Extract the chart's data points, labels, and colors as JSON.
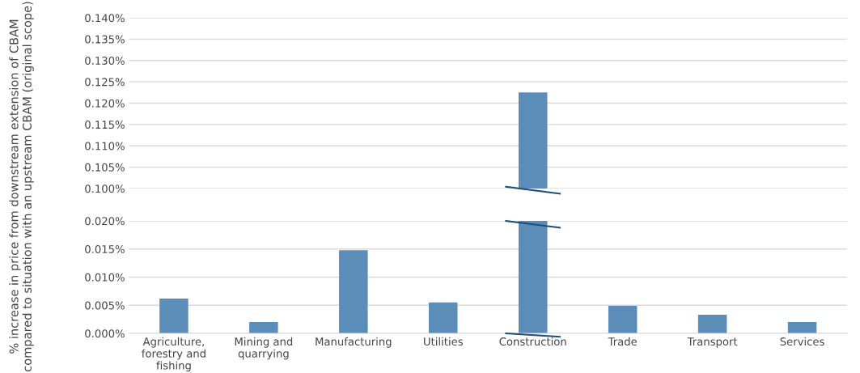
{
  "chart_data": [
    {
      "type": "bar",
      "ylabel": "% increase in price from downstream extension of CBAM compared to situation with an upstream CBAM (original scope)",
      "values": [
        null,
        null,
        null,
        null,
        0.1225,
        null,
        null,
        null
      ],
      "color": "#5b8db8",
      "ylim": [
        0.1,
        0.14
      ],
      "yticks": [
        {
          "value": 0.1,
          "label": "0.100%"
        },
        {
          "value": 0.105,
          "label": "0.105%"
        },
        {
          "value": 0.11,
          "label": "0.110%"
        },
        {
          "value": 0.115,
          "label": "0.115%"
        },
        {
          "value": 0.12,
          "label": "0.120%"
        },
        {
          "value": 0.125,
          "label": "0.125%"
        },
        {
          "value": 0.13,
          "label": "0.130%"
        },
        {
          "value": 0.135,
          "label": "0.135%"
        },
        {
          "value": 0.14,
          "label": "0.140%"
        }
      ],
      "grid": "y",
      "tick_labels": "y"
    },
    {
      "type": "bar",
      "categories": [
        "Agriculture, forestry and fishing",
        "Mining and quarrying",
        "Manufacturing",
        "Utilities",
        "Construction",
        "Trade",
        "Transport",
        "Services"
      ],
      "values": [
        0.0062,
        0.002,
        0.0148,
        0.0055,
        0.02,
        0.0049,
        0.0033,
        0.002
      ],
      "color": "#5b8db8",
      "ylim": [
        0,
        0.02
      ],
      "yticks": [
        {
          "value": 0,
          "label": "0.000%"
        },
        {
          "value": 0.005,
          "label": "0.005%"
        },
        {
          "value": 0.01,
          "label": "0.010%"
        },
        {
          "value": 0.015,
          "label": "0.015%"
        },
        {
          "value": 0.02,
          "label": "0.020%"
        }
      ],
      "grid": "y"
    }
  ]
}
